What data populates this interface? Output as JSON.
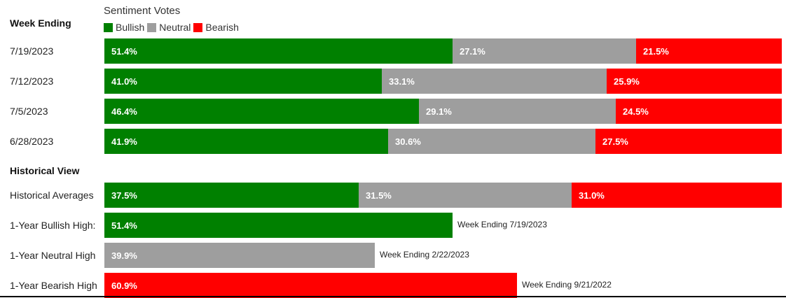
{
  "chart_data": {
    "type": "bar",
    "stacked": true,
    "orientation": "horizontal",
    "title": "Sentiment Votes",
    "legend": {
      "placement": "top-left",
      "entries": [
        "Bullish",
        "Neutral",
        "Bearish"
      ]
    },
    "colors": {
      "Bullish": "#008000",
      "Neutral": "#9e9e9e",
      "Bearish": "#ff0000"
    },
    "weekly": {
      "header": "Week Ending",
      "rows": [
        {
          "label": "7/19/2023",
          "values": [
            51.4,
            27.1,
            21.5
          ],
          "display": [
            "51.4%",
            "27.1%",
            "21.5%"
          ]
        },
        {
          "label": "7/12/2023",
          "values": [
            41.0,
            33.1,
            25.9
          ],
          "display": [
            "41.0%",
            "33.1%",
            "25.9%"
          ]
        },
        {
          "label": "7/5/2023",
          "values": [
            46.4,
            29.1,
            24.5
          ],
          "display": [
            "46.4%",
            "29.1%",
            "24.5%"
          ]
        },
        {
          "label": "6/28/2023",
          "values": [
            41.9,
            30.6,
            27.5
          ],
          "display": [
            "41.9%",
            "30.6%",
            "27.5%"
          ]
        }
      ]
    },
    "historical": {
      "header": "Historical View",
      "averages": {
        "label": "Historical Averages",
        "values": [
          37.5,
          31.5,
          31.0
        ],
        "display": [
          "37.5%",
          "31.5%",
          "31.0%"
        ]
      },
      "highs": [
        {
          "label": "1-Year Bullish High:",
          "series": "Bullish",
          "value": 51.4,
          "display": "51.4%",
          "note": "Week Ending 7/19/2023"
        },
        {
          "label": "1-Year Neutral High",
          "series": "Neutral",
          "value": 39.9,
          "display": "39.9%",
          "note": "Week Ending 2/22/2023"
        },
        {
          "label": "1-Year Bearish High",
          "series": "Bearish",
          "value": 60.9,
          "display": "60.9%",
          "note": "Week Ending 9/21/2022"
        }
      ]
    },
    "xlim": [
      0,
      100
    ]
  }
}
